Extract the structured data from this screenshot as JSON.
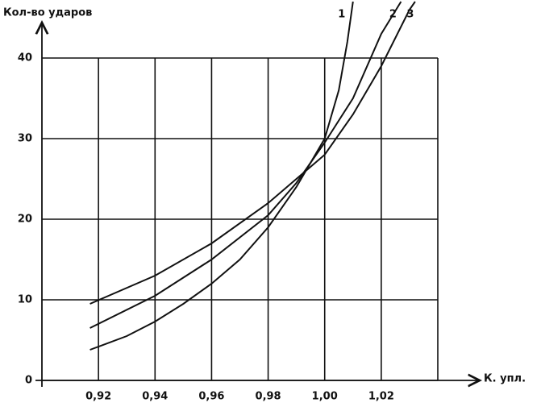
{
  "chart_data": {
    "type": "line",
    "y_label": "Кол-во ударов",
    "x_label": "К. упл.",
    "xlim": [
      0.9,
      1.04
    ],
    "ylim": [
      0,
      47
    ],
    "xticks": [
      {
        "value": 0.92,
        "label": "0,92"
      },
      {
        "value": 0.94,
        "label": "0,94"
      },
      {
        "value": 0.96,
        "label": "0,96"
      },
      {
        "value": 0.98,
        "label": "0,98"
      },
      {
        "value": 1.0,
        "label": "1,00"
      },
      {
        "value": 1.02,
        "label": "1,02"
      }
    ],
    "yticks": [
      0,
      10,
      20,
      30,
      40
    ],
    "grid": true,
    "series": [
      {
        "name": "1",
        "color": "#111111",
        "x": [
          0.917,
          0.93,
          0.94,
          0.95,
          0.96,
          0.97,
          0.98,
          0.99,
          1.0,
          1.005,
          1.008,
          1.01
        ],
        "values": [
          3.8,
          5.5,
          7.3,
          9.5,
          12,
          15,
          19,
          24,
          30,
          36,
          42,
          47
        ]
      },
      {
        "name": "2",
        "color": "#111111",
        "x": [
          0.917,
          0.94,
          0.96,
          0.98,
          0.99,
          1.0,
          1.01,
          1.02,
          1.027
        ],
        "values": [
          6.5,
          10.5,
          15,
          20.5,
          24.5,
          29.5,
          35,
          43,
          47
        ]
      },
      {
        "name": "3",
        "color": "#111111",
        "x": [
          0.917,
          0.94,
          0.96,
          0.98,
          0.99,
          1.0,
          1.01,
          1.02,
          1.03,
          1.032
        ],
        "values": [
          9.5,
          13,
          17,
          22,
          25,
          28,
          33,
          39,
          46,
          47
        ]
      }
    ]
  }
}
